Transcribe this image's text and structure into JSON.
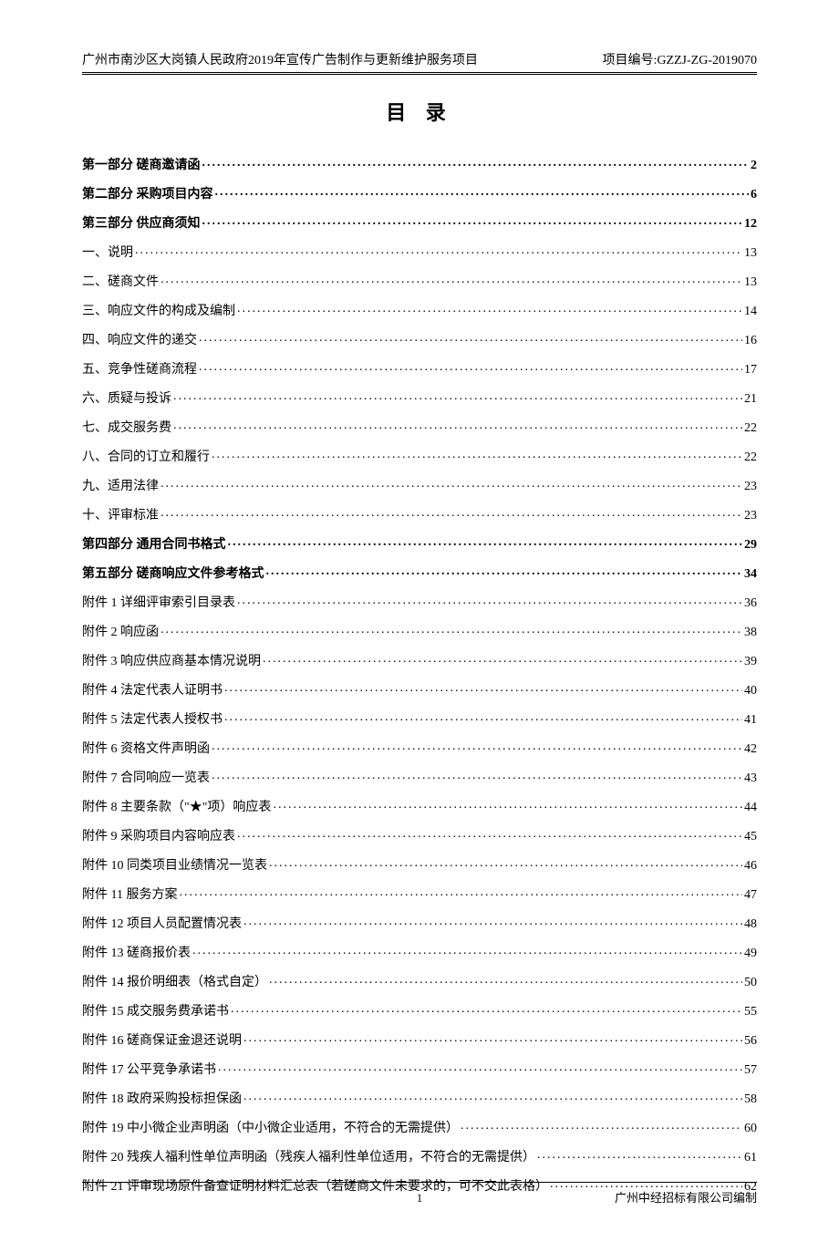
{
  "header": {
    "left": "广州市南沙区大岗镇人民政府2019年宣传广告制作与更新维护服务项目",
    "right": "项目编号:GZZJ-ZG-2019070"
  },
  "title": "目 录",
  "toc": [
    {
      "label": "第一部分 磋商邀请函",
      "page": "2",
      "bold": true
    },
    {
      "label": "第二部分 采购项目内容",
      "page": "6",
      "bold": true
    },
    {
      "label": "第三部分 供应商须知",
      "page": "12",
      "bold": true
    },
    {
      "label": "一、说明",
      "page": "13",
      "bold": false
    },
    {
      "label": "二、磋商文件",
      "page": "13",
      "bold": false
    },
    {
      "label": "三、响应文件的构成及编制",
      "page": "14",
      "bold": false
    },
    {
      "label": "四、响应文件的递交",
      "page": "16",
      "bold": false
    },
    {
      "label": "五、竞争性磋商流程",
      "page": "17",
      "bold": false
    },
    {
      "label": "六、质疑与投诉",
      "page": "21",
      "bold": false
    },
    {
      "label": "七、成交服务费",
      "page": "22",
      "bold": false
    },
    {
      "label": "八、合同的订立和履行",
      "page": "22",
      "bold": false
    },
    {
      "label": "九、适用法律",
      "page": "23",
      "bold": false
    },
    {
      "label": "十、评审标准",
      "page": "23",
      "bold": false
    },
    {
      "label": "第四部分 通用合同书格式",
      "page": "29",
      "bold": true
    },
    {
      "label": "第五部分 磋商响应文件参考格式",
      "page": "34",
      "bold": true
    },
    {
      "label": "附件 1 详细评审索引目录表",
      "page": "36",
      "bold": false
    },
    {
      "label": "附件 2 响应函",
      "page": "38",
      "bold": false
    },
    {
      "label": "附件 3 响应供应商基本情况说明",
      "page": "39",
      "bold": false
    },
    {
      "label": "附件 4 法定代表人证明书",
      "page": "40",
      "bold": false
    },
    {
      "label": "附件 5 法定代表人授权书",
      "page": "41",
      "bold": false
    },
    {
      "label": "附件 6 资格文件声明函",
      "page": "42",
      "bold": false
    },
    {
      "label": "附件 7 合同响应一览表",
      "page": "43",
      "bold": false
    },
    {
      "label": "附件 8 主要条款（\"★\"项）响应表",
      "page": "44",
      "bold": false
    },
    {
      "label": "附件 9 采购项目内容响应表",
      "page": "45",
      "bold": false
    },
    {
      "label": "附件 10 同类项目业绩情况一览表",
      "page": "46",
      "bold": false
    },
    {
      "label": "附件 11 服务方案",
      "page": "47",
      "bold": false
    },
    {
      "label": "附件 12 项目人员配置情况表",
      "page": "48",
      "bold": false
    },
    {
      "label": "附件 13 磋商报价表",
      "page": "49",
      "bold": false
    },
    {
      "label": "附件 14 报价明细表（格式自定）",
      "page": "50",
      "bold": false
    },
    {
      "label": "附件 15 成交服务费承诺书",
      "page": "55",
      "bold": false
    },
    {
      "label": "附件 16 磋商保证金退还说明",
      "page": "56",
      "bold": false
    },
    {
      "label": "附件 17 公平竞争承诺书",
      "page": "57",
      "bold": false
    },
    {
      "label": "附件 18 政府采购投标担保函",
      "page": "58",
      "bold": false
    },
    {
      "label": "附件 19 中小微企业声明函（中小微企业适用，不符合的无需提供）",
      "page": "60",
      "bold": false
    },
    {
      "label": "附件 20 残疾人福利性单位声明函（残疾人福利性单位适用，不符合的无需提供）",
      "page": "61",
      "bold": false
    },
    {
      "label": "附件 21 评审现场原件备查证明材料汇总表（若磋商文件未要求的，可不交此表格）",
      "page": "62",
      "bold": false
    }
  ],
  "footer": {
    "pageNum": "1",
    "right": "广州中经招标有限公司编制"
  }
}
